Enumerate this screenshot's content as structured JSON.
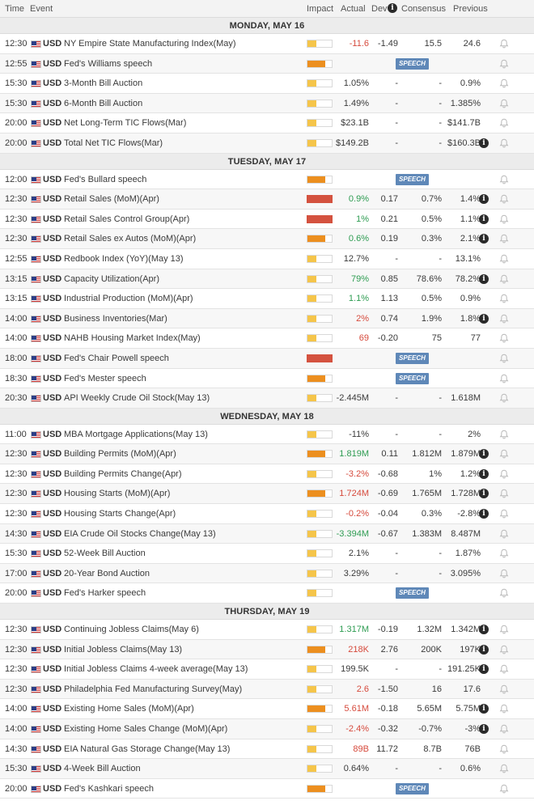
{
  "header": {
    "time": "Time",
    "event": "Event",
    "impact": "Impact",
    "actual": "Actual",
    "dev": "Dev",
    "consensus": "Consensus",
    "previous": "Previous"
  },
  "speech_label": "SPEECH",
  "days": [
    {
      "title": "MONDAY, MAY 16",
      "rows": [
        {
          "time": "12:30",
          "currency": "USD",
          "event": "NY Empire State Manufacturing Index(May)",
          "impact": "low",
          "actual": "-11.6",
          "actual_color": "neg",
          "dev": "-1.49",
          "consensus": "15.5",
          "previous": "24.6"
        },
        {
          "time": "12:55",
          "currency": "USD",
          "event": "Fed's Williams speech",
          "impact": "med",
          "speech": true
        },
        {
          "time": "15:30",
          "currency": "USD",
          "event": "3-Month Bill Auction",
          "impact": "low",
          "actual": "1.05%",
          "actual_color": "neu",
          "dev": "-",
          "consensus": "-",
          "previous": "0.9%"
        },
        {
          "time": "15:30",
          "currency": "USD",
          "event": "6-Month Bill Auction",
          "impact": "low",
          "actual": "1.49%",
          "actual_color": "neu",
          "dev": "-",
          "consensus": "-",
          "previous": "1.385%"
        },
        {
          "time": "20:00",
          "currency": "USD",
          "event": "Net Long-Term TIC Flows(Mar)",
          "impact": "low",
          "actual": "$23.1B",
          "actual_color": "neu",
          "dev": "-",
          "consensus": "-",
          "previous": "$141.7B"
        },
        {
          "time": "20:00",
          "currency": "USD",
          "event": "Total Net TIC Flows(Mar)",
          "impact": "low",
          "actual": "$149.2B",
          "actual_color": "neu",
          "dev": "-",
          "consensus": "-",
          "previous": "$160.3B",
          "prev_info": true
        }
      ]
    },
    {
      "title": "TUESDAY, MAY 17",
      "rows": [
        {
          "time": "12:00",
          "currency": "USD",
          "event": "Fed's Bullard speech",
          "impact": "med",
          "speech": true
        },
        {
          "time": "12:30",
          "currency": "USD",
          "event": "Retail Sales (MoM)(Apr)",
          "impact": "high",
          "actual": "0.9%",
          "actual_color": "pos",
          "dev": "0.17",
          "consensus": "0.7%",
          "previous": "1.4%",
          "prev_info": true
        },
        {
          "time": "12:30",
          "currency": "USD",
          "event": "Retail Sales Control Group(Apr)",
          "impact": "high",
          "actual": "1%",
          "actual_color": "pos",
          "dev": "0.21",
          "consensus": "0.5%",
          "previous": "1.1%",
          "prev_info": true
        },
        {
          "time": "12:30",
          "currency": "USD",
          "event": "Retail Sales ex Autos (MoM)(Apr)",
          "impact": "med",
          "actual": "0.6%",
          "actual_color": "pos",
          "dev": "0.19",
          "consensus": "0.3%",
          "previous": "2.1%",
          "prev_info": true
        },
        {
          "time": "12:55",
          "currency": "USD",
          "event": "Redbook Index (YoY)(May 13)",
          "impact": "low",
          "actual": "12.7%",
          "actual_color": "neu",
          "dev": "-",
          "consensus": "-",
          "previous": "13.1%"
        },
        {
          "time": "13:15",
          "currency": "USD",
          "event": "Capacity Utilization(Apr)",
          "impact": "low",
          "actual": "79%",
          "actual_color": "pos",
          "dev": "0.85",
          "consensus": "78.6%",
          "previous": "78.2%",
          "prev_info": true
        },
        {
          "time": "13:15",
          "currency": "USD",
          "event": "Industrial Production (MoM)(Apr)",
          "impact": "low",
          "actual": "1.1%",
          "actual_color": "pos",
          "dev": "1.13",
          "consensus": "0.5%",
          "previous": "0.9%"
        },
        {
          "time": "14:00",
          "currency": "USD",
          "event": "Business Inventories(Mar)",
          "impact": "low",
          "actual": "2%",
          "actual_color": "neg",
          "dev": "0.74",
          "consensus": "1.9%",
          "previous": "1.8%",
          "prev_info": true
        },
        {
          "time": "14:00",
          "currency": "USD",
          "event": "NAHB Housing Market Index(May)",
          "impact": "low",
          "actual": "69",
          "actual_color": "neg",
          "dev": "-0.20",
          "consensus": "75",
          "previous": "77"
        },
        {
          "time": "18:00",
          "currency": "USD",
          "event": "Fed's Chair Powell speech",
          "impact": "high",
          "speech": true
        },
        {
          "time": "18:30",
          "currency": "USD",
          "event": "Fed's Mester speech",
          "impact": "med",
          "speech": true
        },
        {
          "time": "20:30",
          "currency": "USD",
          "event": "API Weekly Crude Oil Stock(May 13)",
          "impact": "low",
          "actual": "-2.445M",
          "actual_color": "neu",
          "dev": "-",
          "consensus": "-",
          "previous": "1.618M"
        }
      ]
    },
    {
      "title": "WEDNESDAY, MAY 18",
      "rows": [
        {
          "time": "11:00",
          "currency": "USD",
          "event": "MBA Mortgage Applications(May 13)",
          "impact": "low",
          "actual": "-11%",
          "actual_color": "neu",
          "dev": "-",
          "consensus": "-",
          "previous": "2%"
        },
        {
          "time": "12:30",
          "currency": "USD",
          "event": "Building Permits (MoM)(Apr)",
          "impact": "med",
          "actual": "1.819M",
          "actual_color": "pos",
          "dev": "0.11",
          "consensus": "1.812M",
          "previous": "1.879M",
          "prev_info": true
        },
        {
          "time": "12:30",
          "currency": "USD",
          "event": "Building Permits Change(Apr)",
          "impact": "low",
          "actual": "-3.2%",
          "actual_color": "neg",
          "dev": "-0.68",
          "consensus": "1%",
          "previous": "1.2%",
          "prev_info": true
        },
        {
          "time": "12:30",
          "currency": "USD",
          "event": "Housing Starts (MoM)(Apr)",
          "impact": "med",
          "actual": "1.724M",
          "actual_color": "neg",
          "dev": "-0.69",
          "consensus": "1.765M",
          "previous": "1.728M",
          "prev_info": true
        },
        {
          "time": "12:30",
          "currency": "USD",
          "event": "Housing Starts Change(Apr)",
          "impact": "low",
          "actual": "-0.2%",
          "actual_color": "neg",
          "dev": "-0.04",
          "consensus": "0.3%",
          "previous": "-2.8%",
          "prev_info": true
        },
        {
          "time": "14:30",
          "currency": "USD",
          "event": "EIA Crude Oil Stocks Change(May 13)",
          "impact": "low",
          "actual": "-3.394M",
          "actual_color": "pos",
          "dev": "-0.67",
          "consensus": "1.383M",
          "previous": "8.487M"
        },
        {
          "time": "15:30",
          "currency": "USD",
          "event": "52-Week Bill Auction",
          "impact": "low",
          "actual": "2.1%",
          "actual_color": "neu",
          "dev": "-",
          "consensus": "-",
          "previous": "1.87%"
        },
        {
          "time": "17:00",
          "currency": "USD",
          "event": "20-Year Bond Auction",
          "impact": "low",
          "actual": "3.29%",
          "actual_color": "neu",
          "dev": "-",
          "consensus": "-",
          "previous": "3.095%"
        },
        {
          "time": "20:00",
          "currency": "USD",
          "event": "Fed's Harker speech",
          "impact": "low",
          "speech": true
        }
      ]
    },
    {
      "title": "THURSDAY, MAY 19",
      "rows": [
        {
          "time": "12:30",
          "currency": "USD",
          "event": "Continuing Jobless Claims(May 6)",
          "impact": "low",
          "actual": "1.317M",
          "actual_color": "pos",
          "dev": "-0.19",
          "consensus": "1.32M",
          "previous": "1.342M",
          "prev_info": true
        },
        {
          "time": "12:30",
          "currency": "USD",
          "event": "Initial Jobless Claims(May 13)",
          "impact": "med",
          "actual": "218K",
          "actual_color": "neg",
          "dev": "2.76",
          "consensus": "200K",
          "previous": "197K",
          "prev_info": true
        },
        {
          "time": "12:30",
          "currency": "USD",
          "event": "Initial Jobless Claims 4-week average(May 13)",
          "impact": "low",
          "actual": "199.5K",
          "actual_color": "neu",
          "dev": "-",
          "consensus": "-",
          "previous": "191.25K",
          "prev_info": true
        },
        {
          "time": "12:30",
          "currency": "USD",
          "event": "Philadelphia Fed Manufacturing Survey(May)",
          "impact": "low",
          "actual": "2.6",
          "actual_color": "neg",
          "dev": "-1.50",
          "consensus": "16",
          "previous": "17.6"
        },
        {
          "time": "14:00",
          "currency": "USD",
          "event": "Existing Home Sales (MoM)(Apr)",
          "impact": "med",
          "actual": "5.61M",
          "actual_color": "neg",
          "dev": "-0.18",
          "consensus": "5.65M",
          "previous": "5.75M",
          "prev_info": true
        },
        {
          "time": "14:00",
          "currency": "USD",
          "event": "Existing Home Sales Change (MoM)(Apr)",
          "impact": "low",
          "actual": "-2.4%",
          "actual_color": "neg",
          "dev": "-0.32",
          "consensus": "-0.7%",
          "previous": "-3%",
          "prev_info": true
        },
        {
          "time": "14:30",
          "currency": "USD",
          "event": "EIA Natural Gas Storage Change(May 13)",
          "impact": "low",
          "actual": "89B",
          "actual_color": "neg",
          "dev": "11.72",
          "consensus": "8.7B",
          "previous": "76B"
        },
        {
          "time": "15:30",
          "currency": "USD",
          "event": "4-Week Bill Auction",
          "impact": "low",
          "actual": "0.64%",
          "actual_color": "neu",
          "dev": "-",
          "consensus": "-",
          "previous": "0.6%"
        },
        {
          "time": "20:00",
          "currency": "USD",
          "event": "Fed's Kashkari speech",
          "impact": "med",
          "speech": true
        }
      ]
    }
  ]
}
